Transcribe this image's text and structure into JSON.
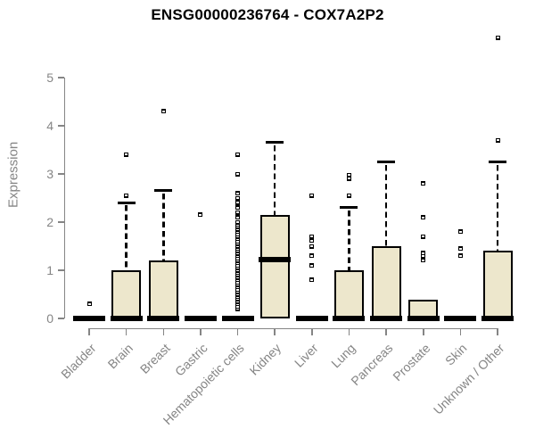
{
  "title": "ENSG00000236764 - COX7A2P2",
  "colors": {
    "background": "#ffffff",
    "box_fill": "#EDE7CC",
    "box_border": "#000000",
    "median": "#000000",
    "whisker": "#000000",
    "outlier": "#000000",
    "axis": "#858585",
    "tick_text": "#858585",
    "title_text": "#000000"
  },
  "chart_data": {
    "type": "boxplot",
    "title": "ENSG00000236764 - COX7A2P2",
    "xlabel": "",
    "ylabel": "Expression",
    "ylim": [
      0,
      5
    ],
    "yticks": [
      0,
      1,
      2,
      3,
      4,
      5
    ],
    "grid": false,
    "legend": false,
    "categories": [
      "Bladder",
      "Brain",
      "Breast",
      "Gastric",
      "Hematopoietic cells",
      "Kidney",
      "Liver",
      "Lung",
      "Pancreas",
      "Prostate",
      "Skin",
      "Unknown / Other"
    ],
    "boxes": [
      {
        "category": "Bladder",
        "q1": 0,
        "median": 0,
        "q3": 0,
        "whisker_low": 0,
        "whisker_high": 0,
        "outliers": [
          0.3
        ]
      },
      {
        "category": "Brain",
        "q1": 0,
        "median": 0,
        "q3": 1.0,
        "whisker_low": 0,
        "whisker_high": 2.4,
        "outliers": [
          2.55,
          3.4
        ]
      },
      {
        "category": "Breast",
        "q1": 0,
        "median": 0,
        "q3": 1.2,
        "whisker_low": 0,
        "whisker_high": 2.65,
        "outliers": [
          4.3
        ]
      },
      {
        "category": "Gastric",
        "q1": 0,
        "median": 0,
        "q3": 0,
        "whisker_low": 0,
        "whisker_high": 0,
        "outliers": [
          2.15
        ]
      },
      {
        "category": "Hematopoietic cells",
        "q1": 0,
        "median": 0,
        "q3": 0,
        "whisker_low": 0,
        "whisker_high": 0,
        "outliers": [
          0.2,
          0.25,
          0.3,
          0.35,
          0.4,
          0.45,
          0.5,
          0.55,
          0.6,
          0.65,
          0.7,
          0.75,
          0.8,
          0.85,
          0.9,
          0.95,
          1.0,
          1.05,
          1.1,
          1.15,
          1.2,
          1.25,
          1.3,
          1.35,
          1.4,
          1.45,
          1.5,
          1.55,
          1.6,
          1.65,
          1.7,
          1.75,
          1.8,
          1.85,
          1.9,
          1.95,
          2.0,
          2.1,
          2.2,
          2.3,
          2.4,
          2.5,
          2.6,
          3.0,
          3.4
        ]
      },
      {
        "category": "Kidney",
        "q1": 0,
        "median": 1.22,
        "q3": 2.15,
        "whisker_low": 0,
        "whisker_high": 3.65,
        "outliers": []
      },
      {
        "category": "Liver",
        "q1": 0,
        "median": 0,
        "q3": 0,
        "whisker_low": 0,
        "whisker_high": 0,
        "outliers": [
          0.8,
          1.1,
          1.3,
          1.5,
          1.62,
          1.7,
          2.55
        ]
      },
      {
        "category": "Lung",
        "q1": 0,
        "median": 0,
        "q3": 1.0,
        "whisker_low": 0,
        "whisker_high": 2.3,
        "outliers": [
          2.55,
          2.9,
          2.98
        ]
      },
      {
        "category": "Pancreas",
        "q1": 0,
        "median": 0,
        "q3": 1.5,
        "whisker_low": 0,
        "whisker_high": 3.25,
        "outliers": []
      },
      {
        "category": "Prostate",
        "q1": 0,
        "median": 0,
        "q3": 0.38,
        "whisker_low": 0,
        "whisker_high": 0.38,
        "outliers": [
          1.21,
          1.29,
          1.36,
          1.7,
          2.1,
          2.8
        ]
      },
      {
        "category": "Skin",
        "q1": 0,
        "median": 0,
        "q3": 0,
        "whisker_low": 0,
        "whisker_high": 0,
        "outliers": [
          1.3,
          1.45,
          1.8
        ]
      },
      {
        "category": "Unknown / Other",
        "q1": 0,
        "median": 0,
        "q3": 1.4,
        "whisker_low": 0,
        "whisker_high": 3.25,
        "outliers": [
          3.7,
          5.83
        ]
      }
    ]
  }
}
